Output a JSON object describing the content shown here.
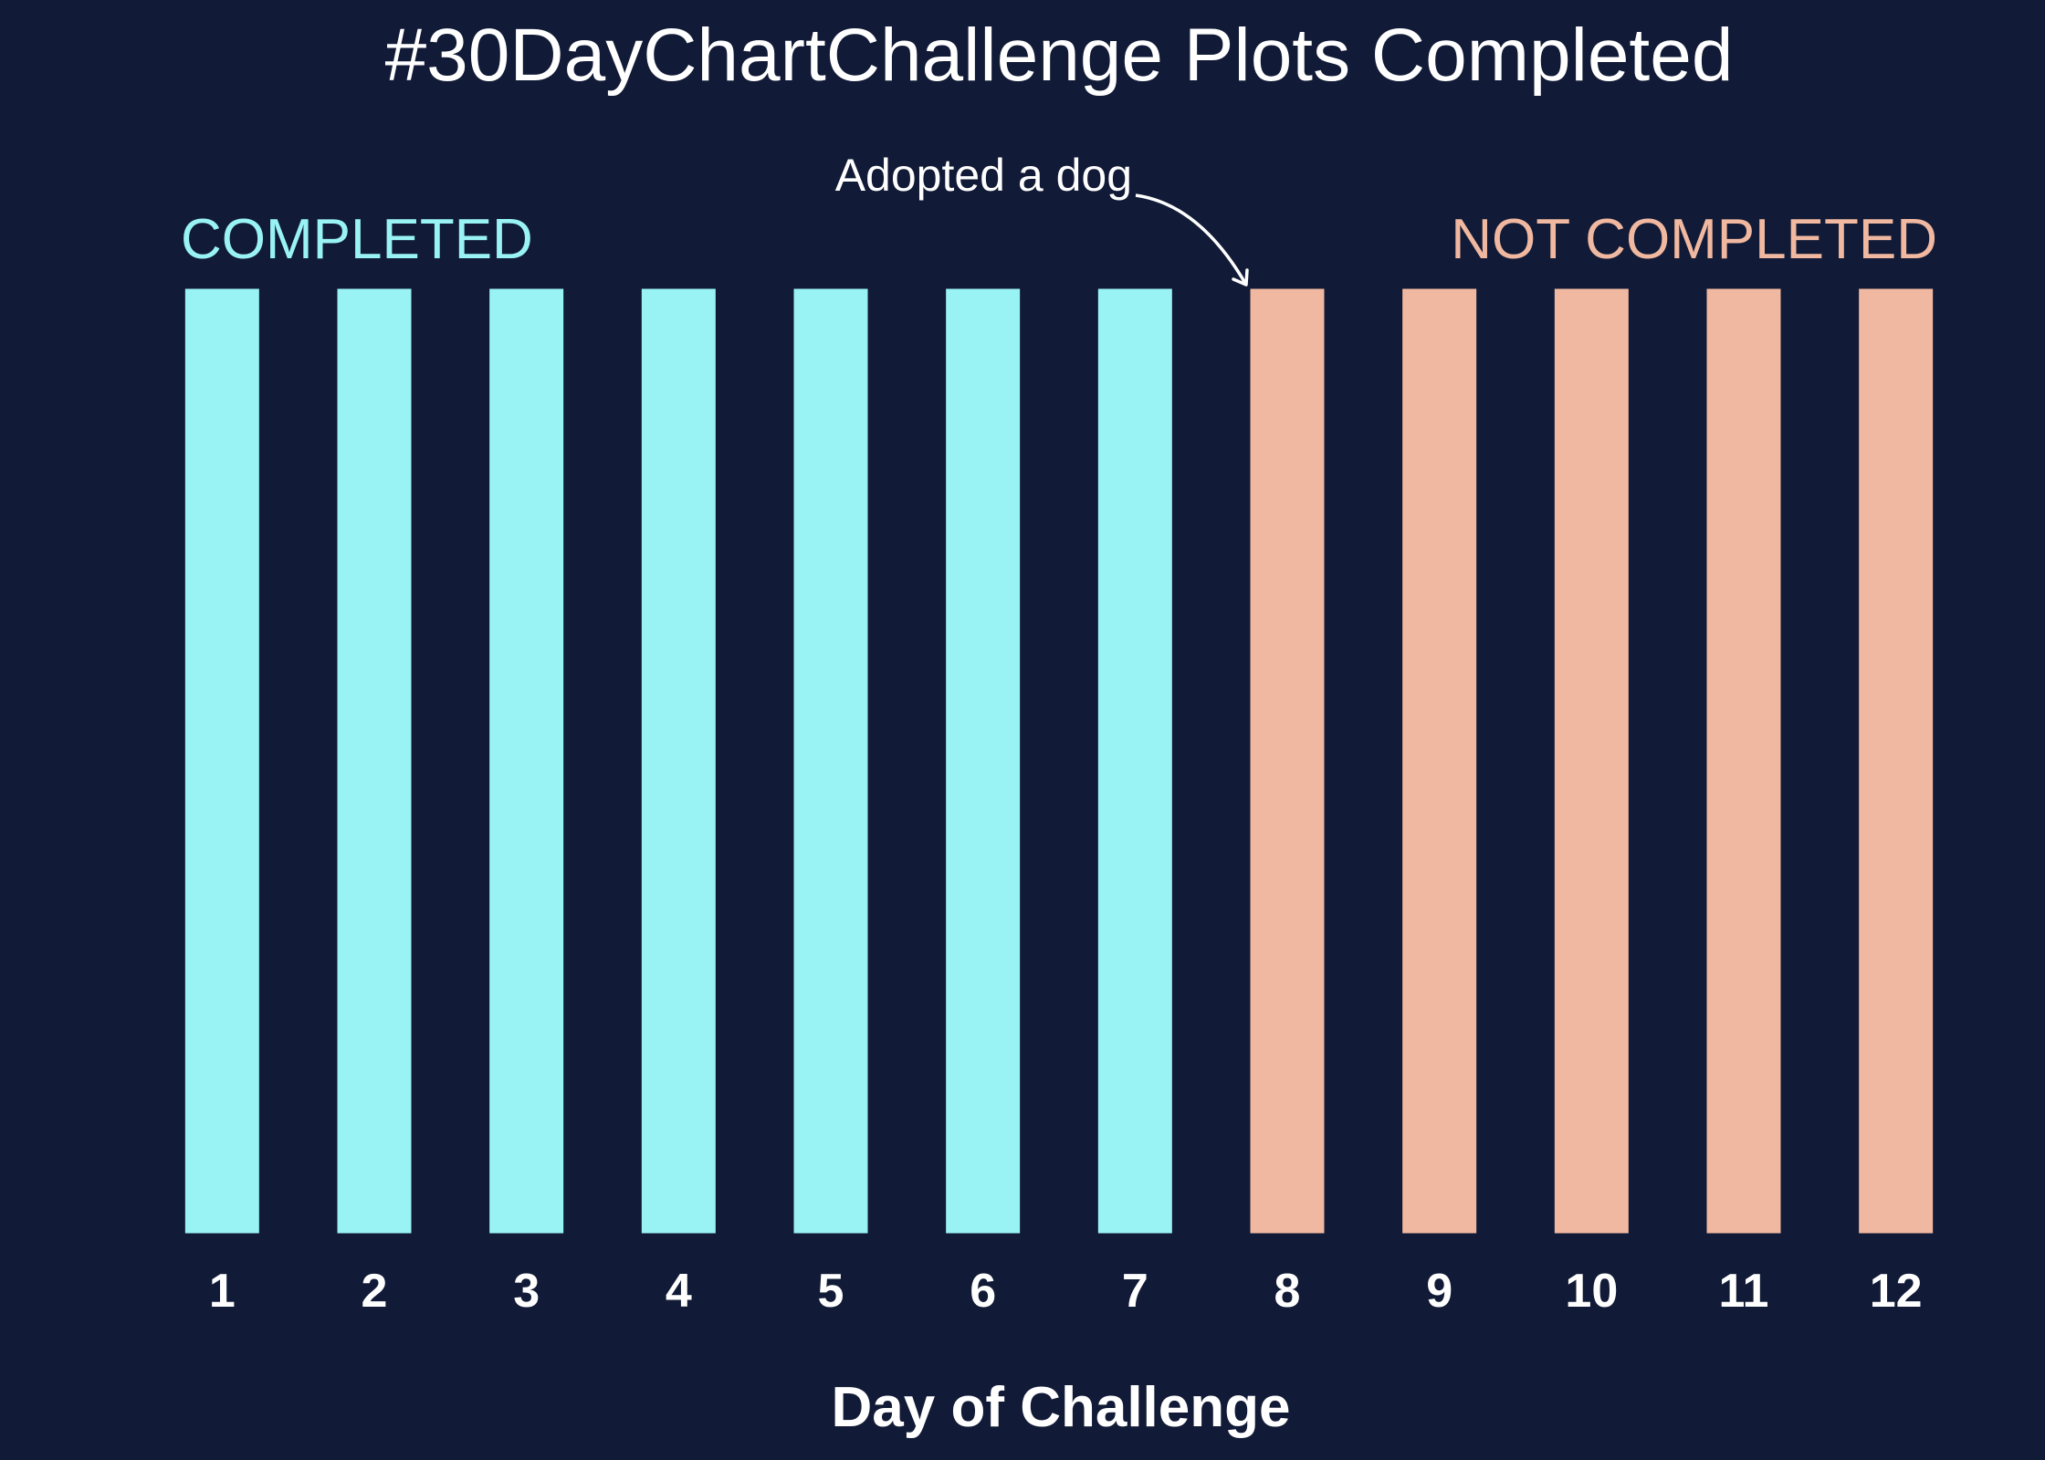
{
  "chart_data": {
    "type": "bar",
    "title": "#30DayChartChallenge Plots Completed",
    "xlabel": "Day of Challenge",
    "ylabel": "",
    "categories": [
      "1",
      "2",
      "3",
      "4",
      "5",
      "6",
      "7",
      "8",
      "9",
      "10",
      "11",
      "12"
    ],
    "values": [
      1,
      1,
      1,
      1,
      1,
      1,
      1,
      1,
      1,
      1,
      1,
      1
    ],
    "status": [
      "COMPLETED",
      "COMPLETED",
      "COMPLETED",
      "COMPLETED",
      "COMPLETED",
      "COMPLETED",
      "COMPLETED",
      "NOT COMPLETED",
      "NOT COMPLETED",
      "NOT COMPLETED",
      "NOT COMPLETED",
      "NOT COMPLETED"
    ],
    "ylim": [
      0,
      1
    ],
    "grid": false,
    "groups": {
      "completed": {
        "label": "COMPLETED",
        "color": "#99f3f5"
      },
      "not_completed": {
        "label": "NOT COMPLETED",
        "color": "#f0b8a0"
      }
    },
    "annotation": {
      "text": "Adopted a dog",
      "target_category": "8"
    }
  },
  "colors": {
    "background": "#111a36",
    "text": "#ffffff",
    "completed": "#99f3f5",
    "not_completed": "#f0b8a0"
  }
}
